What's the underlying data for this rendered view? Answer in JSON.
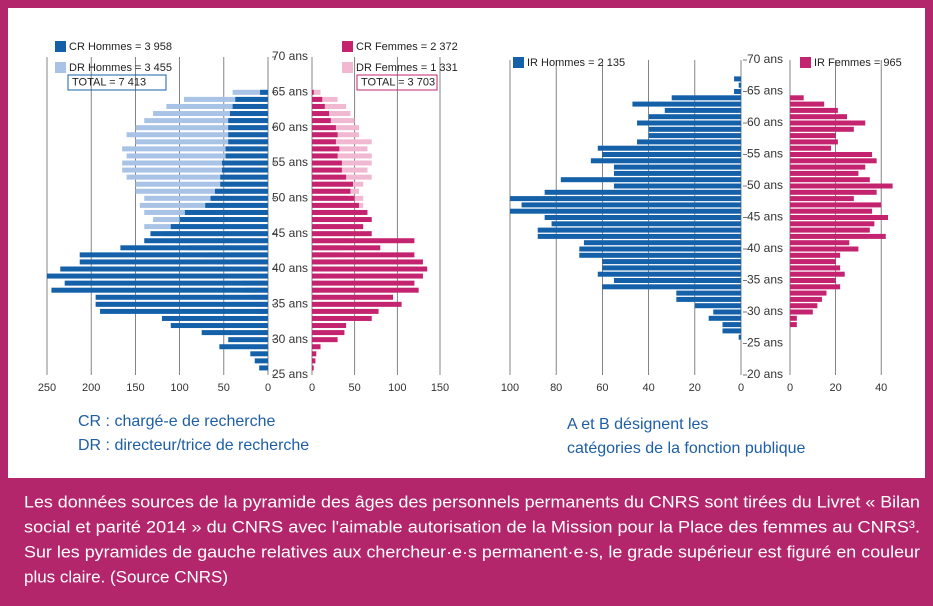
{
  "chart_data": [
    {
      "type": "pyramid",
      "x": [
        26,
        27,
        28,
        29,
        30,
        31,
        32,
        33,
        34,
        35,
        36,
        37,
        38,
        39,
        40,
        41,
        42,
        43,
        44,
        45,
        46,
        47,
        48,
        49,
        50,
        51,
        52,
        53,
        54,
        55,
        56,
        57,
        58,
        59,
        60,
        61,
        62,
        63,
        64,
        65
      ],
      "xlim": [
        25,
        70
      ],
      "xticks": [
        {
          "value": 25,
          "label": "25 ans"
        },
        {
          "value": 30,
          "label": "30 ans"
        },
        {
          "value": 35,
          "label": "35 ans"
        },
        {
          "value": 40,
          "label": "40 ans"
        },
        {
          "value": 45,
          "label": "45 ans"
        },
        {
          "value": 50,
          "label": "50 ans"
        },
        {
          "value": 55,
          "label": "55 ans"
        },
        {
          "value": 60,
          "label": "60 ans"
        },
        {
          "value": 65,
          "label": "65 ans"
        },
        {
          "value": 70,
          "label": "70 ans"
        }
      ],
      "ylim": [
        0,
        250
      ],
      "yticks": [
        0,
        50,
        100,
        150,
        200,
        250
      ],
      "y2lim": [
        0,
        150
      ],
      "y2ticks": [
        0,
        50,
        100,
        150
      ],
      "grid": true,
      "series": [
        {
          "name": "CR Hommes = 3 958",
          "color": "#1461a9",
          "values": [
            10,
            15,
            20,
            55,
            45,
            75,
            110,
            120,
            190,
            195,
            195,
            245,
            230,
            250,
            235,
            213,
            213,
            167,
            140,
            133,
            110,
            100,
            94,
            71,
            65,
            60,
            54,
            54,
            52,
            52,
            48,
            48,
            45,
            45,
            45,
            45,
            43,
            40,
            37,
            9
          ]
        },
        {
          "name": "DR Hommes = 3 455",
          "color": "#a9c3e6",
          "values": [
            0,
            0,
            0,
            0,
            0,
            2,
            5,
            8,
            12,
            15,
            20,
            25,
            30,
            40,
            50,
            60,
            70,
            90,
            105,
            120,
            140,
            130,
            140,
            145,
            140,
            150,
            150,
            160,
            165,
            165,
            160,
            165,
            150,
            160,
            150,
            140,
            130,
            115,
            95,
            40
          ]
        },
        {
          "name": "CR Femmes = 2 372",
          "color": "#c4236f",
          "axis": "y2",
          "values": [
            2,
            4,
            5,
            10,
            30,
            38,
            40,
            70,
            78,
            105,
            95,
            125,
            120,
            130,
            135,
            130,
            120,
            80,
            120,
            70,
            60,
            70,
            65,
            55,
            50,
            45,
            48,
            40,
            35,
            35,
            30,
            32,
            28,
            30,
            28,
            22,
            20,
            15,
            12,
            2
          ]
        },
        {
          "name": "DR Femmes = 1 331",
          "color": "#f1b8d1",
          "axis": "y2",
          "values": [
            0,
            0,
            0,
            0,
            0,
            0,
            0,
            0,
            0,
            0,
            5,
            8,
            10,
            15,
            18,
            25,
            30,
            35,
            45,
            45,
            50,
            55,
            55,
            60,
            60,
            55,
            60,
            70,
            65,
            70,
            70,
            65,
            70,
            55,
            55,
            50,
            45,
            40,
            30,
            10
          ]
        }
      ],
      "annotations": [
        "TOTAL = 7 413",
        "TOTAL = 3 703"
      ],
      "notes": [
        "CR : chargé-e de recherche",
        "DR : directeur/trice de recherche"
      ]
    },
    {
      "type": "pyramid",
      "x": [
        26,
        27,
        28,
        29,
        30,
        31,
        32,
        33,
        34,
        35,
        36,
        37,
        38,
        39,
        40,
        41,
        42,
        43,
        44,
        45,
        46,
        47,
        48,
        49,
        50,
        51,
        52,
        53,
        54,
        55,
        56,
        57,
        58,
        59,
        60,
        61,
        62,
        63,
        64,
        65,
        66,
        67
      ],
      "xlim": [
        20,
        70
      ],
      "xticks": [
        {
          "value": 20,
          "label": "20 ans"
        },
        {
          "value": 25,
          "label": "25 ans"
        },
        {
          "value": 30,
          "label": "30 ans"
        },
        {
          "value": 35,
          "label": "35 ans"
        },
        {
          "value": 40,
          "label": "40 ans"
        },
        {
          "value": 45,
          "label": "45 ans"
        },
        {
          "value": 50,
          "label": "50 ans"
        },
        {
          "value": 55,
          "label": "55 ans"
        },
        {
          "value": 60,
          "label": "60 ans"
        },
        {
          "value": 65,
          "label": "65 ans"
        },
        {
          "value": 70,
          "label": "70 ans"
        }
      ],
      "ylim": [
        0,
        100
      ],
      "yticks": [
        0,
        20,
        40,
        60,
        80,
        100
      ],
      "y2lim": [
        0,
        50
      ],
      "y2ticks": [
        0,
        20,
        40
      ],
      "grid": true,
      "series": [
        {
          "name": "IR Hommes = 2 135",
          "color": "#1461a9",
          "values": [
            1,
            8,
            8,
            14,
            12,
            20,
            28,
            28,
            60,
            55,
            62,
            60,
            60,
            70,
            70,
            68,
            88,
            88,
            82,
            85,
            100,
            95,
            100,
            85,
            55,
            78,
            55,
            55,
            65,
            60,
            62,
            45,
            40,
            40,
            45,
            40,
            33,
            47,
            30,
            3,
            1,
            3
          ]
        },
        {
          "name": "IR Femmes = 965",
          "color": "#c4236f",
          "axis": "y2",
          "values": [
            0,
            0,
            3,
            3,
            10,
            12,
            14,
            16,
            22,
            20,
            24,
            22,
            20,
            22,
            30,
            26,
            42,
            35,
            37,
            43,
            36,
            40,
            28,
            38,
            45,
            35,
            30,
            33,
            38,
            36,
            18,
            21,
            20,
            28,
            33,
            25,
            21,
            15,
            6,
            0,
            0,
            0
          ]
        }
      ],
      "notes": [
        "A et B désignent les",
        "catégories de la fonction publique"
      ]
    }
  ],
  "caption": [
    "Les données sources de la pyramide des âges des personnels permanents du CNRS sont tirées du Livret « Bilan",
    "social et parité 2014 » du CNRS avec l'aimable autorisation de la Mission pour la Place des femmes au CNRS³.",
    "Sur les pyramides de gauche relatives aux chercheur·e·s permanent·e·s, le grade supérieur est figuré en couleur",
    "plus claire.  (Source CNRS)"
  ]
}
